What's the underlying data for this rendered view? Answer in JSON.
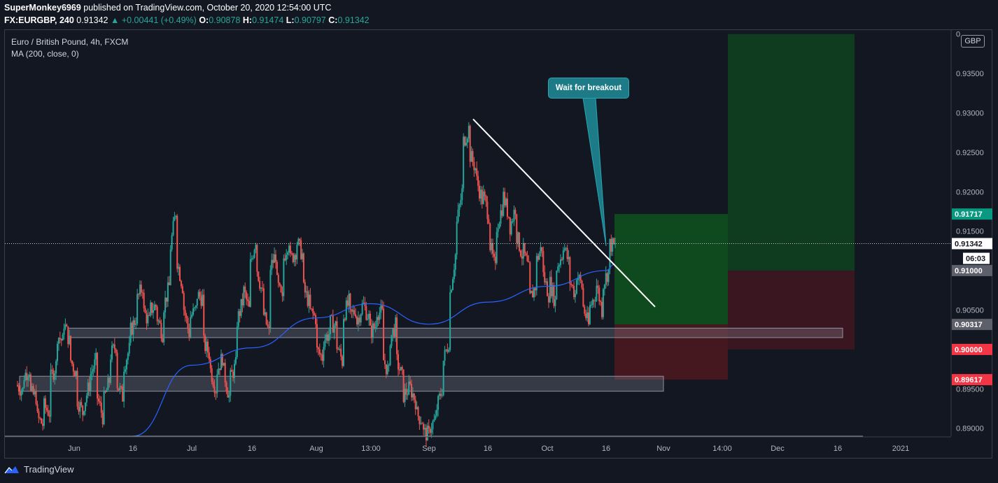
{
  "header": {
    "publisher": "SuperMonkey6969",
    "published_text": "published on TradingView.com, October 20, 2020 12:54:00 UTC",
    "symbol": "FX:EURGBP, 240",
    "last": "0.91342",
    "change": "▲ +0.00441 (+0.49%)",
    "o_label": "O:",
    "o_value": "0.90878",
    "h_label": "H:",
    "h_value": "0.91474",
    "l_label": "L:",
    "l_value": "0.90797",
    "c_label": "C:",
    "c_value": "0.91342"
  },
  "legend": {
    "title": "Euro / British Pound, 4h, FXCM",
    "indicator": "MA (200, close, 0)"
  },
  "currency_button": "GBP",
  "annotation": {
    "text": "Wait for breakout"
  },
  "footer": {
    "brand": "TradingView"
  },
  "colors": {
    "background": "#131722",
    "bull": "#26a69a",
    "bear": "#ef5350",
    "ma": "#2962ff",
    "trendline": "#ffffff",
    "target_zone": "#0f3d1d",
    "stop_zone": "#3b1620"
  },
  "chart_data": {
    "type": "candlestick",
    "instrument": "EURGBP",
    "timeframe": "4h",
    "ylim": [
      0.889,
      0.9405
    ],
    "y_ticks": [
      "0.89000",
      "0.89500",
      "0.90000",
      "0.90500",
      "0.91000",
      "0.91500",
      "0.92000",
      "0.92500",
      "0.93000",
      "0.93500",
      "0"
    ],
    "x_ticks": [
      "Jun",
      "16",
      "Jul",
      "16",
      "Aug",
      "13:00",
      "Sep",
      "16",
      "Oct",
      "16",
      "Nov",
      "14:00",
      "Dec",
      "16",
      "2021"
    ],
    "price_labels": [
      {
        "text": "0.91717",
        "value": 0.91717,
        "color": "#089981",
        "textColor": "#ffffff"
      },
      {
        "text": "0.91342",
        "value": 0.91342,
        "color": "#ffffff",
        "textColor": "#131722"
      },
      {
        "text": "06:03",
        "value": 0.91155,
        "color": "#ffffff",
        "textColor": "#131722"
      },
      {
        "text": "0.91000",
        "value": 0.91,
        "color": "#5d606b",
        "textColor": "#ffffff"
      },
      {
        "text": "0.90317",
        "value": 0.90317,
        "color": "#5d606b",
        "textColor": "#ffffff"
      },
      {
        "text": "0.90000",
        "value": 0.9,
        "color": "#f23645",
        "textColor": "#ffffff"
      },
      {
        "text": "0.89617",
        "value": 0.89617,
        "color": "#f23645",
        "textColor": "#ffffff"
      }
    ],
    "close_path": [
      [
        0.8955,
        0.8948
      ],
      [
        0.8965,
        0.8975
      ],
      [
        0.8945,
        0.894
      ],
      [
        0.8915,
        0.8905
      ],
      [
        0.893,
        0.892
      ],
      [
        0.896,
        0.898
      ],
      [
        0.902,
        0.901
      ],
      [
        0.904,
        0.901
      ],
      [
        0.899,
        0.897
      ],
      [
        0.894,
        0.892
      ],
      [
        0.8925,
        0.8955
      ],
      [
        0.8965,
        0.8985
      ],
      [
        0.8945,
        0.8915
      ],
      [
        0.893,
        0.896
      ],
      [
        0.899,
        0.9005
      ],
      [
        0.896,
        0.894
      ],
      [
        0.8975,
        0.9
      ],
      [
        0.902,
        0.904
      ],
      [
        0.906,
        0.908
      ],
      [
        0.905,
        0.9035
      ],
      [
        0.905,
        0.9055
      ],
      [
        0.9045,
        0.902
      ],
      [
        0.905,
        0.908
      ],
      [
        0.912,
        0.9175
      ],
      [
        0.912,
        0.908
      ],
      [
        0.906,
        0.902
      ],
      [
        0.904,
        0.905
      ],
      [
        0.907,
        0.9065
      ],
      [
        0.901,
        0.8995
      ],
      [
        0.898,
        0.895
      ],
      [
        0.897,
        0.899
      ],
      [
        0.898,
        0.894
      ],
      [
        0.896,
        0.898
      ],
      [
        0.903,
        0.906
      ],
      [
        0.908,
        0.905
      ],
      [
        0.91,
        0.914
      ],
      [
        0.911,
        0.907
      ],
      [
        0.905,
        0.902
      ],
      [
        0.91,
        0.912
      ],
      [
        0.909,
        0.906
      ],
      [
        0.911,
        0.914
      ],
      [
        0.911,
        0.9125
      ],
      [
        0.914,
        0.912
      ],
      [
        0.908,
        0.906
      ],
      [
        0.905,
        0.904
      ],
      [
        0.9,
        0.899
      ],
      [
        0.901,
        0.902
      ],
      [
        0.9035,
        0.903
      ],
      [
        0.901,
        0.8985
      ],
      [
        0.904,
        0.906
      ],
      [
        0.904,
        0.905
      ],
      [
        0.903,
        0.9055
      ],
      [
        0.906,
        0.904
      ],
      [
        0.902,
        0.903
      ],
      [
        0.905,
        0.9045
      ],
      [
        0.899,
        0.897
      ],
      [
        0.901,
        0.903
      ],
      [
        0.899,
        0.8965
      ],
      [
        0.894,
        0.895
      ],
      [
        0.8955,
        0.8935
      ],
      [
        0.892,
        0.891
      ],
      [
        0.8895,
        0.8892
      ],
      [
        0.89,
        0.891
      ],
      [
        0.892,
        0.895
      ],
      [
        0.898,
        0.901
      ],
      [
        0.906,
        0.912
      ],
      [
        0.915,
        0.92
      ],
      [
        0.926,
        0.928
      ],
      [
        0.925,
        0.923
      ],
      [
        0.922,
        0.919
      ],
      [
        0.92,
        0.917
      ],
      [
        0.914,
        0.91
      ],
      [
        0.915,
        0.918
      ],
      [
        0.92,
        0.917
      ],
      [
        0.915,
        0.918
      ],
      [
        0.915,
        0.912
      ],
      [
        0.913,
        0.91
      ],
      [
        0.906,
        0.908
      ],
      [
        0.911,
        0.913
      ],
      [
        0.91,
        0.907
      ],
      [
        0.909,
        0.906
      ],
      [
        0.91,
        0.912
      ],
      [
        0.914,
        0.911
      ],
      [
        0.909,
        0.907
      ],
      [
        0.91,
        0.908
      ],
      [
        0.906,
        0.903
      ],
      [
        0.905,
        0.907
      ],
      [
        0.909,
        0.905
      ],
      [
        0.908,
        0.91
      ],
      [
        0.9134,
        0.913
      ]
    ],
    "moving_average": {
      "name": "MA (200, close, 0)",
      "x": [
        "Jun-16",
        "Jul",
        "Jul-16",
        "Aug",
        "Aug-mid",
        "Sep",
        "Sep-16",
        "Oct",
        "Oct-16"
      ],
      "values": [
        0.889,
        0.898,
        0.9002,
        0.904,
        0.9058,
        0.9032,
        0.906,
        0.908,
        0.91
      ]
    },
    "trendline": {
      "x": [
        "Sep-12",
        "Oct-28"
      ],
      "values": [
        0.9292,
        0.9054
      ]
    },
    "support_zones": [
      {
        "from": "May-end",
        "to": "Dec-16",
        "low": 0.9015,
        "high": 0.9027
      },
      {
        "from": "May-end",
        "to": "Nov",
        "low": 0.8947,
        "high": 0.8966
      }
    ],
    "position": {
      "entry": 0.90317,
      "stop": 0.89617,
      "target": 0.91717,
      "second_entry": 0.91,
      "second_stop": 0.9,
      "second_target": 0.94
    }
  }
}
